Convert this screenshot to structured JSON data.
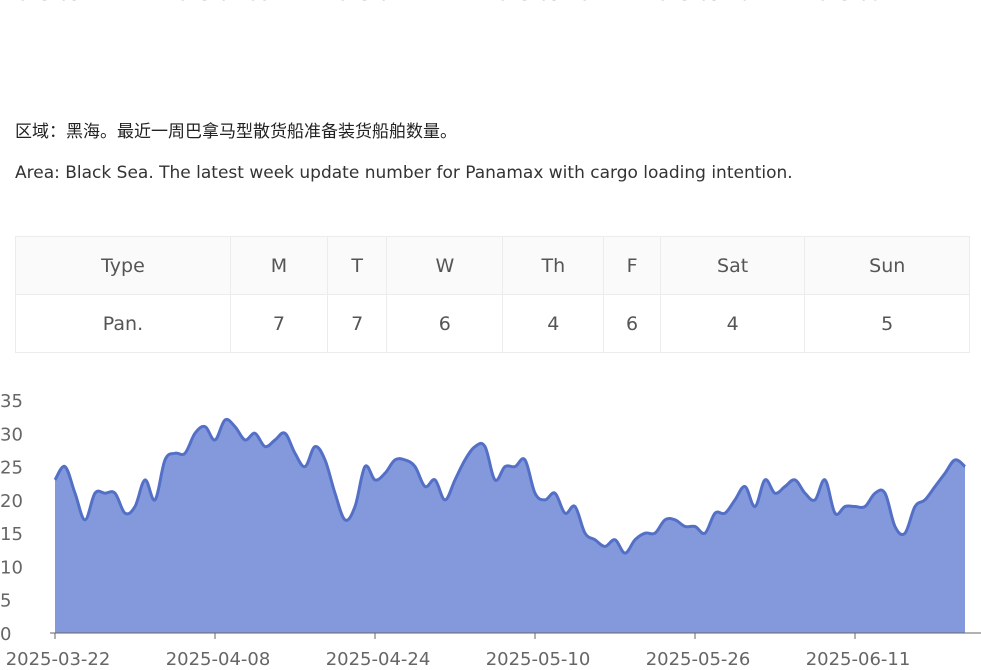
{
  "top_axis_labels": [
    "2025-03-22",
    "2025-04-08",
    "2025-04-24",
    "2025-05-10",
    "2025-05-26",
    "2025-06-11"
  ],
  "text_cn": "区域：黑海。最近一周巴拿马型散货船准备装货船舶数量。",
  "text_en": "Area: Black Sea. The latest week update number for Panamax with cargo loading intention.",
  "table": {
    "header": [
      "Type",
      "M",
      "T",
      "W",
      "Th",
      "F",
      "Sat",
      "Sun"
    ],
    "rows": [
      [
        "Pan.",
        7,
        7,
        6,
        4,
        6,
        4,
        5
      ]
    ]
  },
  "chart_data": {
    "type": "area",
    "color": "#5470c6",
    "fill": "#8399dc",
    "categories": [
      "2025-03-22",
      null,
      null,
      null,
      null,
      null,
      null,
      null,
      null,
      null,
      null,
      null,
      null,
      null,
      null,
      null,
      "2025-04-08",
      null,
      null,
      null,
      null,
      null,
      null,
      null,
      null,
      null,
      null,
      null,
      null,
      null,
      null,
      null,
      "2025-04-24",
      null,
      null,
      null,
      null,
      null,
      null,
      null,
      null,
      null,
      null,
      null,
      null,
      null,
      null,
      null,
      "2025-05-10",
      null,
      null,
      null,
      null,
      null,
      null,
      null,
      null,
      null,
      null,
      null,
      null,
      null,
      null,
      null,
      "2025-05-26",
      null,
      null,
      null,
      null,
      null,
      null,
      null,
      null,
      null,
      null,
      null,
      null,
      null,
      null,
      null,
      "2025-06-11",
      null,
      null,
      null,
      null,
      null,
      null,
      null,
      null,
      null,
      null,
      null
    ],
    "values": [
      23,
      25,
      21,
      17,
      21,
      21,
      21,
      18,
      19,
      23,
      20,
      26,
      27,
      27,
      30,
      31,
      29,
      32,
      31,
      29,
      30,
      28,
      29,
      30,
      27,
      25,
      28,
      26,
      21,
      17,
      19,
      25,
      23,
      24,
      26,
      26,
      25,
      22,
      23,
      20,
      23,
      26,
      28,
      28,
      23,
      25,
      25,
      26,
      21,
      20,
      21,
      18,
      19,
      15,
      14,
      13,
      14,
      12,
      14,
      15,
      15,
      17,
      17,
      16,
      16,
      15,
      18,
      18,
      20,
      22,
      19,
      23,
      21,
      22,
      23,
      21,
      20,
      23,
      18,
      19,
      19,
      19,
      21,
      21,
      16,
      15,
      19,
      20,
      22,
      24,
      26,
      25
    ],
    "ylim": [
      0,
      35
    ],
    "yticks": [
      0,
      5,
      10,
      15,
      20,
      25,
      30,
      35
    ]
  }
}
